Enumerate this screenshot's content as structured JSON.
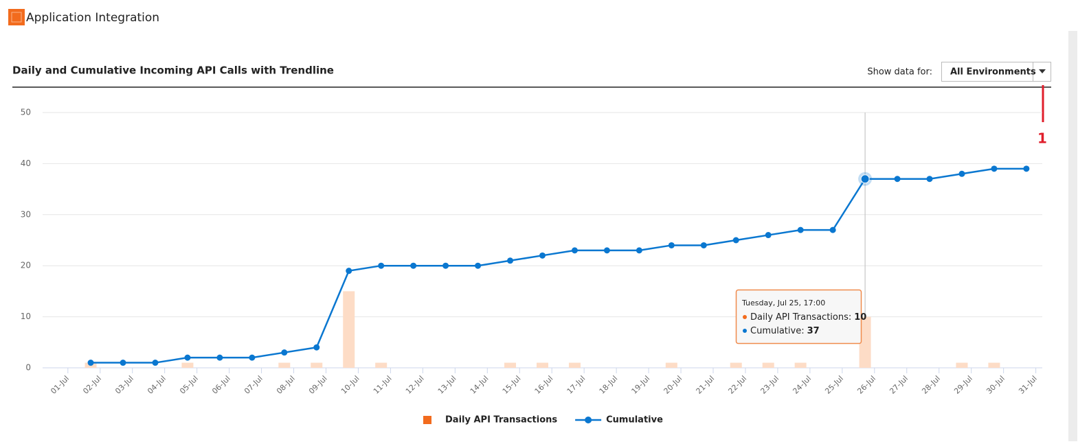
{
  "header": {
    "title": "Application Integration"
  },
  "panel": {
    "show_label": "Show data for:",
    "dropdown": "All Environments",
    "annotation": "1"
  },
  "chart_data": {
    "type": "bar-line",
    "title": "Daily and Cumulative Incoming API Calls with Trendline",
    "categories": [
      "01-Jul",
      "02-Jul",
      "03-Jul",
      "04-Jul",
      "05-Jul",
      "06-Jul",
      "07-Jul",
      "08-Jul",
      "09-Jul",
      "10-Jul",
      "11-Jul",
      "12-Jul",
      "13-Jul",
      "14-Jul",
      "15-Jul",
      "16-Jul",
      "17-Jul",
      "18-Jul",
      "19-Jul",
      "20-Jul",
      "21-Jul",
      "22-Jul",
      "23-Jul",
      "24-Jul",
      "25-Jul",
      "26-Jul",
      "27-Jul",
      "28-Jul",
      "29-Jul",
      "30-Jul",
      "31-Jul"
    ],
    "series": [
      {
        "name": "Daily API Transactions",
        "type": "bar",
        "color": "#fddcc6",
        "legend_color": "#f26b1d",
        "values": [
          1,
          0,
          0,
          1,
          0,
          0,
          1,
          1,
          15,
          1,
          0,
          0,
          0,
          1,
          1,
          1,
          0,
          0,
          1,
          0,
          1,
          1,
          1,
          0,
          10,
          0,
          0,
          1,
          1,
          0,
          null
        ]
      },
      {
        "name": "Cumulative",
        "type": "line",
        "color": "#0a77d0",
        "values": [
          1,
          1,
          1,
          2,
          2,
          2,
          3,
          4,
          19,
          20,
          20,
          20,
          20,
          21,
          22,
          23,
          23,
          23,
          24,
          24,
          25,
          26,
          27,
          27,
          37,
          37,
          37,
          38,
          39,
          39,
          null
        ]
      }
    ],
    "ylim": [
      0,
      50
    ],
    "yticks": [
      0,
      10,
      20,
      30,
      40,
      50
    ],
    "grid": true,
    "tooltip": {
      "title": "Tuesday, Jul 25, 17:00",
      "labels": [
        "Daily API Transactions:",
        "Cumulative:"
      ],
      "index": 24
    }
  }
}
